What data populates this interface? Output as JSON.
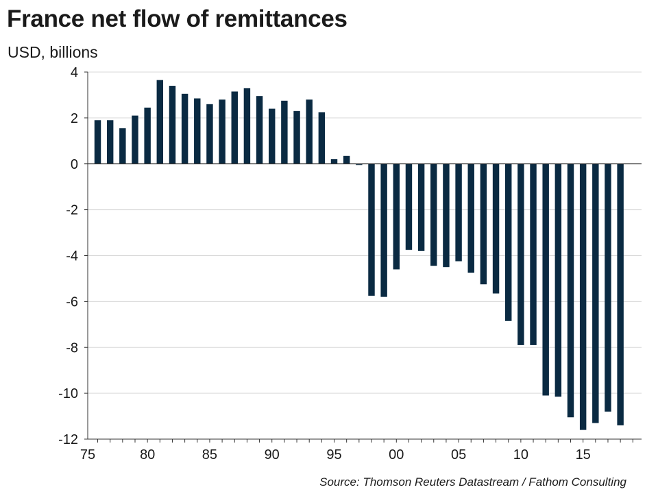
{
  "chart_data": {
    "type": "bar",
    "title": "France net flow of remittances",
    "subtitle": "USD, billions",
    "source": "Source: Thomson Reuters Datastream / Fathom Consulting",
    "x_ticks": [
      "75",
      "80",
      "85",
      "90",
      "95",
      "00",
      "05",
      "10",
      "15"
    ],
    "y_ticks": [
      "4",
      "2",
      "0",
      "-2",
      "-4",
      "-6",
      "-8",
      "-10",
      "-12"
    ],
    "ylim": [
      -12,
      4
    ],
    "grid": "horizontal",
    "colors": {
      "bar": "#0a2a42",
      "grid": "#d9d9d9",
      "axis": "#333333"
    },
    "x": [
      1976,
      1977,
      1978,
      1979,
      1980,
      1981,
      1982,
      1983,
      1984,
      1985,
      1986,
      1987,
      1988,
      1989,
      1990,
      1991,
      1992,
      1993,
      1994,
      1995,
      1996,
      1997,
      1998,
      1999,
      2000,
      2001,
      2002,
      2003,
      2004,
      2005,
      2006,
      2007,
      2008,
      2009,
      2010,
      2011,
      2012,
      2013,
      2014,
      2015,
      2016,
      2017,
      2018
    ],
    "values": [
      1.9,
      1.9,
      1.55,
      2.1,
      2.45,
      3.65,
      3.4,
      3.05,
      2.85,
      2.6,
      2.8,
      3.15,
      3.3,
      2.95,
      2.4,
      2.75,
      2.3,
      2.8,
      2.25,
      0.2,
      0.35,
      -0.05,
      -5.75,
      -5.8,
      -4.6,
      -3.75,
      -3.8,
      -4.45,
      -4.5,
      -4.25,
      -4.75,
      -5.25,
      -5.65,
      -6.85,
      -7.9,
      -7.9,
      -10.1,
      -10.15,
      -11.05,
      -11.6,
      -11.3,
      -10.8,
      -11.4
    ]
  }
}
